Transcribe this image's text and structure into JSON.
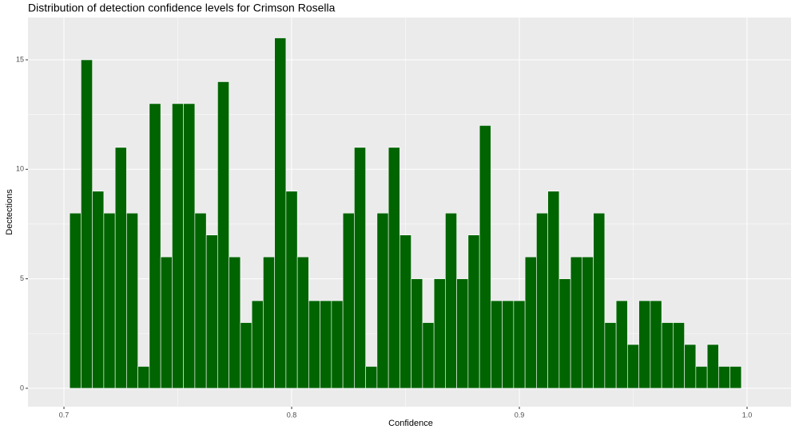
{
  "chart_data": {
    "type": "histogram",
    "title": "Distribution of detection confidence levels for Crimson Rosella",
    "x_label": "Confidence",
    "y_label": "Dectections",
    "bins": [
      0.7025,
      0.7075,
      0.7125,
      0.7175,
      0.7225,
      0.7275,
      0.7325,
      0.7375,
      0.7425,
      0.7475,
      0.7525,
      0.7575,
      0.7625,
      0.7675,
      0.7725,
      0.7775,
      0.7825,
      0.7875,
      0.7925,
      0.7975,
      0.8025,
      0.8075,
      0.8125,
      0.8175,
      0.8225,
      0.8275,
      0.8325,
      0.8375,
      0.8425,
      0.8475,
      0.8525,
      0.8575,
      0.8625,
      0.8675,
      0.8725,
      0.8775,
      0.8825,
      0.8875,
      0.8925,
      0.8975,
      0.9025,
      0.9075,
      0.9125,
      0.9175,
      0.9225,
      0.9275,
      0.9325,
      0.9375,
      0.9425,
      0.9475,
      0.9525,
      0.9575,
      0.9625,
      0.9675,
      0.9725,
      0.9775,
      0.9825,
      0.9875,
      0.9925,
      0.9975
    ],
    "values": [
      8,
      15,
      9,
      8,
      11,
      8,
      1,
      13,
      6,
      13,
      13,
      8,
      7,
      14,
      6,
      3,
      4,
      6,
      16,
      9,
      6,
      4,
      4,
      4,
      8,
      11,
      1,
      8,
      11,
      7,
      5,
      3,
      5,
      8,
      5,
      7,
      12,
      4,
      4,
      4,
      6,
      8,
      9,
      5,
      6,
      6,
      8,
      3,
      4,
      2,
      4,
      4,
      3,
      3,
      2,
      1,
      2,
      1,
      1
    ],
    "color": "#006400",
    "xlim": [
      0.6842,
      1.0193
    ],
    "xticks": [
      0.7,
      0.8,
      0.9,
      {
        "value": 1.0,
        "label": "1.0"
      }
    ],
    "ylim": [
      -0.84,
      16.93
    ],
    "yticks": [
      0,
      5,
      10,
      15
    ],
    "grid": true
  }
}
